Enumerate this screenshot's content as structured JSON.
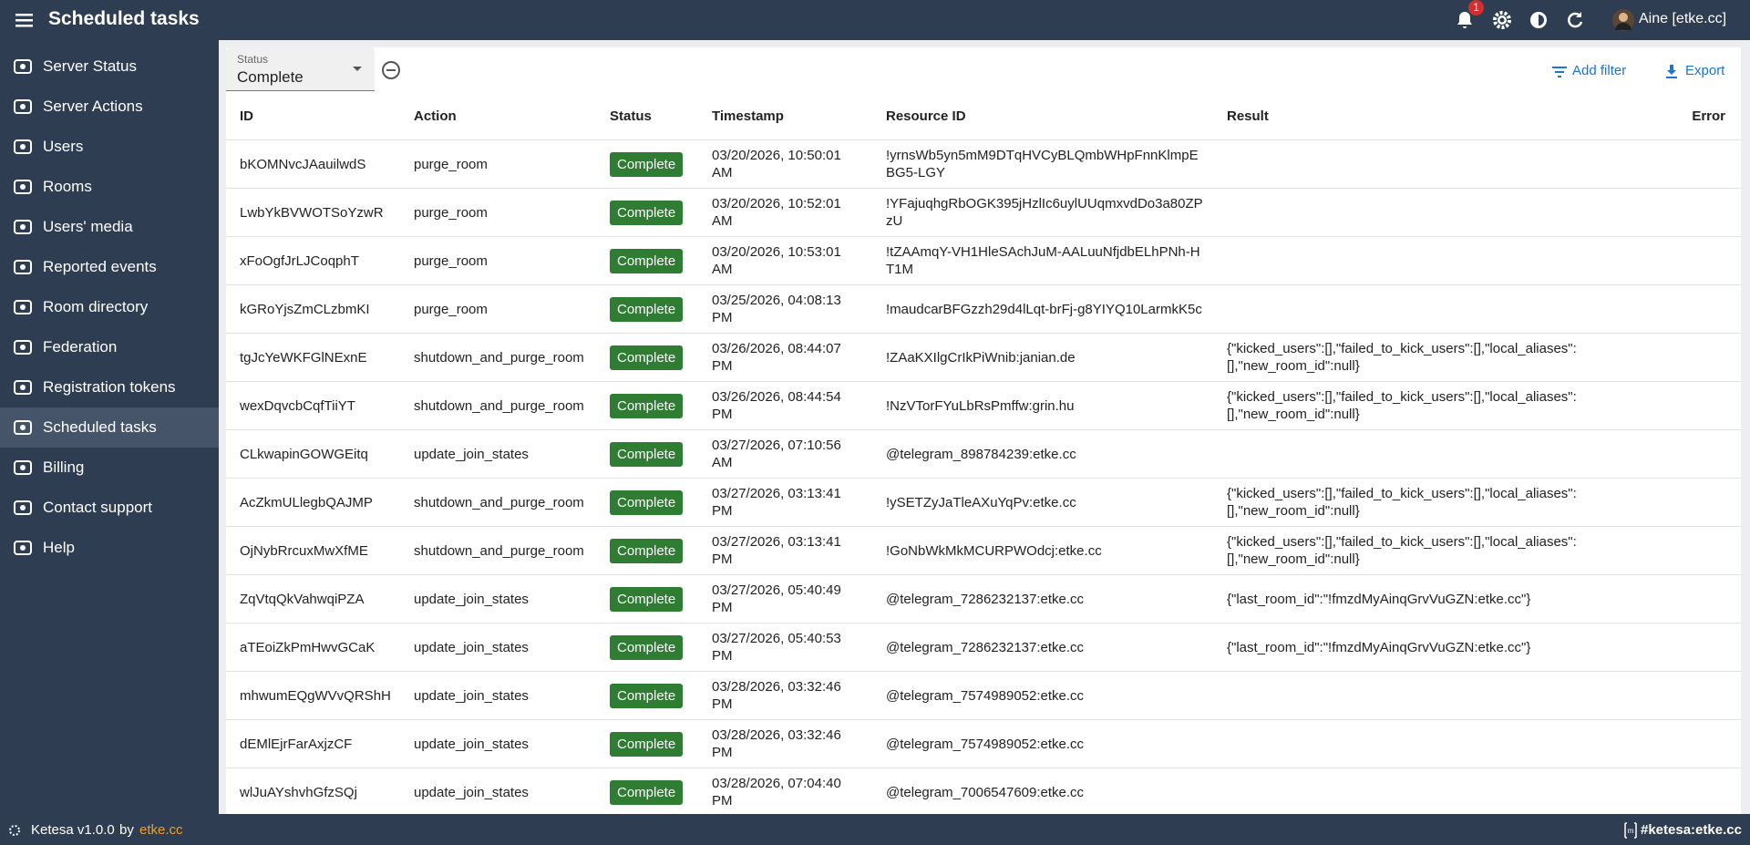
{
  "header": {
    "title": "Scheduled tasks",
    "notifications": "1",
    "user": "Aine [etke.cc]"
  },
  "sidebar": {
    "items": [
      "Server Status",
      "Server Actions",
      "Users",
      "Rooms",
      "Users' media",
      "Reported events",
      "Room directory",
      "Federation",
      "Registration tokens",
      "Scheduled tasks",
      "Billing",
      "Contact support",
      "Help"
    ]
  },
  "filter": {
    "label": "Status",
    "value": "Complete"
  },
  "actions": {
    "add_filter": "Add filter",
    "export": "Export"
  },
  "table": {
    "columns": [
      "ID",
      "Action",
      "Status",
      "Timestamp",
      "Resource ID",
      "Result",
      "Error"
    ],
    "rows": [
      {
        "id": "bKOMNvcJAauilwdS",
        "action": "purge_room",
        "status": "Complete",
        "timestamp": "03/20/2026, 10:50:01 AM",
        "resource_id": "!yrnsWb5yn5mM9DTqHVCyBLQmbWHpFnnKlmpEBG5-LGY"
      },
      {
        "id": "LwbYkBVWOTSoYzwR",
        "action": "purge_room",
        "status": "Complete",
        "timestamp": "03/20/2026, 10:52:01 AM",
        "resource_id": "!YFajuqhgRbOGK395jHzlIc6uylUUqmxvdDo3a80ZPzU"
      },
      {
        "id": "xFoOgfJrLJCoqphT",
        "action": "purge_room",
        "status": "Complete",
        "timestamp": "03/20/2026, 10:53:01 AM",
        "resource_id": "!tZAAmqY-VH1HleSAchJuM-AALuuNfjdbELhPNh-HT1M"
      },
      {
        "id": "kGRoYjsZmCLzbmKI",
        "action": "purge_room",
        "status": "Complete",
        "timestamp": "03/25/2026, 04:08:13 PM",
        "resource_id": "!maudcarBFGzzh29d4lLqt-brFj-g8YIYQ10LarmkK5c"
      },
      {
        "id": "tgJcYeWKFGlNExnE",
        "action": "shutdown_and_purge_room",
        "status": "Complete",
        "timestamp": "03/26/2026, 08:44:07 PM",
        "resource_id": "!ZAaKXIlgCrIkPiWnib:janian.de",
        "result": "{\"kicked_users\":[],\"failed_to_kick_users\":[],\"local_aliases\":[],\"new_room_id\":null}"
      },
      {
        "id": "wexDqvcbCqfTiiYT",
        "action": "shutdown_and_purge_room",
        "status": "Complete",
        "timestamp": "03/26/2026, 08:44:54 PM",
        "resource_id": "!NzVTorFYuLbRsPmffw:grin.hu",
        "result": "{\"kicked_users\":[],\"failed_to_kick_users\":[],\"local_aliases\":[],\"new_room_id\":null}"
      },
      {
        "id": "CLkwapinGOWGEitq",
        "action": "update_join_states",
        "status": "Complete",
        "timestamp": "03/27/2026, 07:10:56 AM",
        "resource_id": "@telegram_898784239:etke.cc"
      },
      {
        "id": "AcZkmULlegbQAJMP",
        "action": "shutdown_and_purge_room",
        "status": "Complete",
        "timestamp": "03/27/2026, 03:13:41 PM",
        "resource_id": "!ySETZyJaTleAXuYqPv:etke.cc",
        "result": "{\"kicked_users\":[],\"failed_to_kick_users\":[],\"local_aliases\":[],\"new_room_id\":null}"
      },
      {
        "id": "OjNybRrcuxMwXfME",
        "action": "shutdown_and_purge_room",
        "status": "Complete",
        "timestamp": "03/27/2026, 03:13:41 PM",
        "resource_id": "!GoNbWkMkMCURPWOdcj:etke.cc",
        "result": "{\"kicked_users\":[],\"failed_to_kick_users\":[],\"local_aliases\":[],\"new_room_id\":null}"
      },
      {
        "id": "ZqVtqQkVahwqiPZA",
        "action": "update_join_states",
        "status": "Complete",
        "timestamp": "03/27/2026, 05:40:49 PM",
        "resource_id": "@telegram_7286232137:etke.cc",
        "result": "{\"last_room_id\":\"!fmzdMyAinqGrvVuGZN:etke.cc\"}"
      },
      {
        "id": "aTEoiZkPmHwvGCaK",
        "action": "update_join_states",
        "status": "Complete",
        "timestamp": "03/27/2026, 05:40:53 PM",
        "resource_id": "@telegram_7286232137:etke.cc",
        "result": "{\"last_room_id\":\"!fmzdMyAinqGrvVuGZN:etke.cc\"}"
      },
      {
        "id": "mhwumEQgWVvQRShH",
        "action": "update_join_states",
        "status": "Complete",
        "timestamp": "03/28/2026, 03:32:46 PM",
        "resource_id": "@telegram_7574989052:etke.cc"
      },
      {
        "id": "dEMlEjrFarAxjzCF",
        "action": "update_join_states",
        "status": "Complete",
        "timestamp": "03/28/2026, 03:32:46 PM",
        "resource_id": "@telegram_7574989052:etke.cc"
      },
      {
        "id": "wlJuAYshvhGfzSQj",
        "action": "update_join_states",
        "status": "Complete",
        "timestamp": "03/28/2026, 07:04:40 PM",
        "resource_id": "@telegram_7006547609:etke.cc"
      }
    ]
  },
  "footer": {
    "app": "Ketesa v1.0.0",
    "by": "by",
    "link": "etke.cc",
    "room": "#ketesa:etke.cc"
  }
}
